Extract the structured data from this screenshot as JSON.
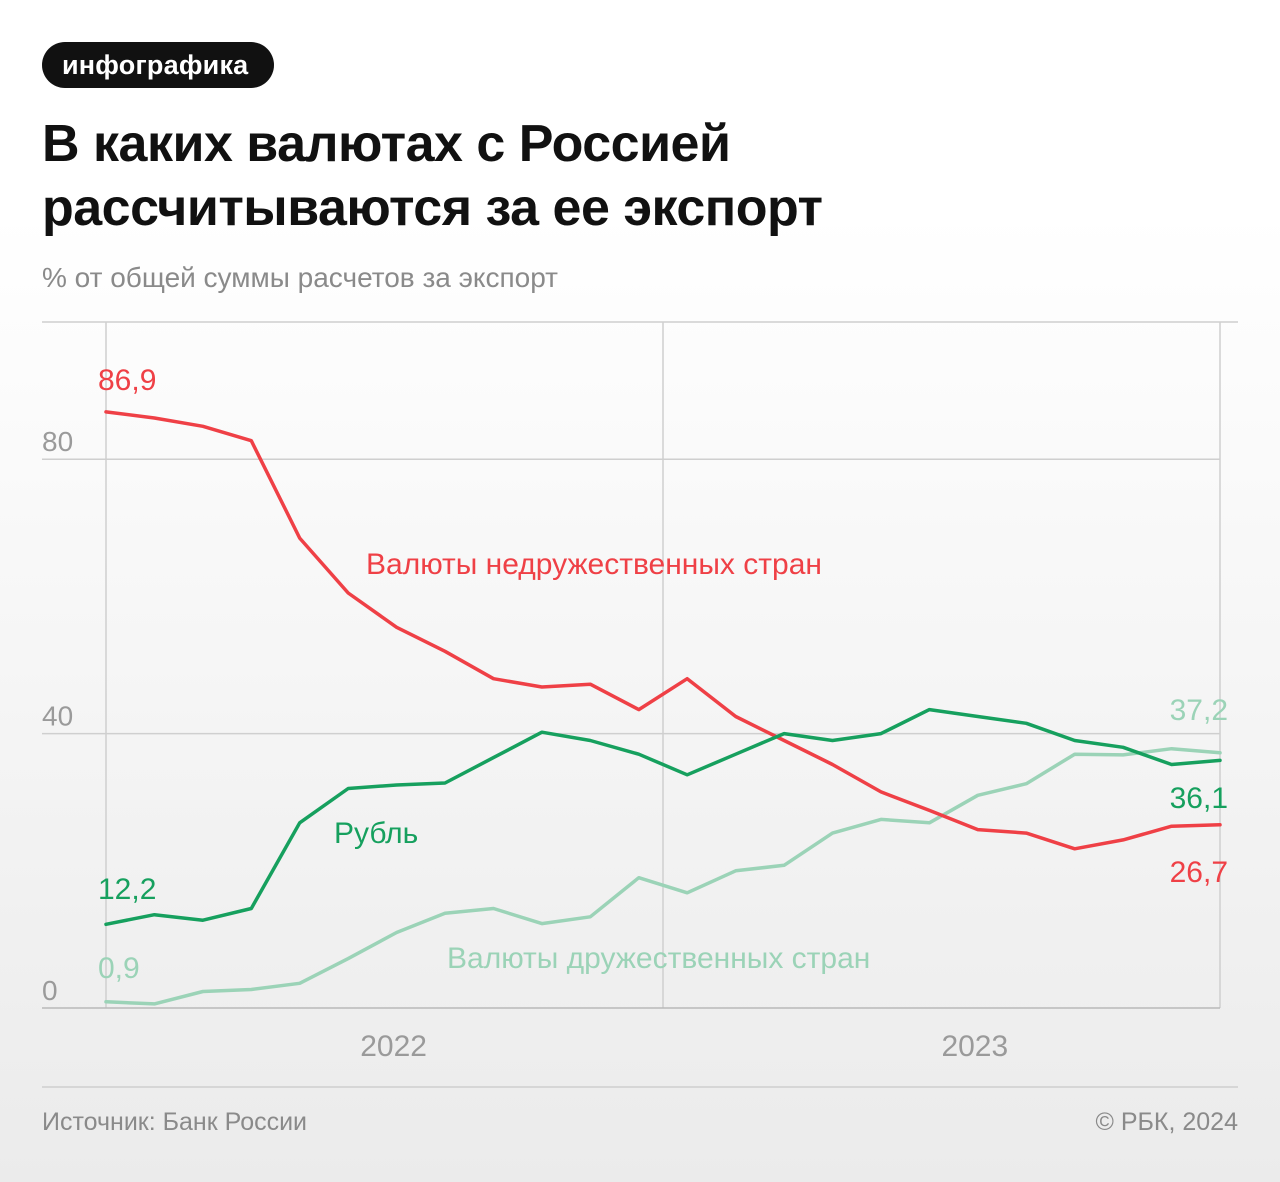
{
  "badge": "инфографика",
  "title_line1": "В каких валютах с Россией",
  "title_line2": "рассчитываются за ее экспорт",
  "subtitle": "% от общей суммы расчетов за экспорт",
  "footer": {
    "source": "Источник: Банк России",
    "copyright": "© РБК, 2024"
  },
  "colors": {
    "unfriendly": "#ef4046",
    "ruble": "#16a05e",
    "friendly": "#9bd3b7",
    "grid": "#cfcfcf",
    "tick": "#9a9a9a"
  },
  "chart_data": {
    "type": "line",
    "title": "В каких валютах с Россией рассчитываются за ее экспорт",
    "subtitle": "% от общей суммы расчетов за экспорт",
    "x": [
      "2022-01",
      "2022-02",
      "2022-03",
      "2022-04",
      "2022-05",
      "2022-06",
      "2022-07",
      "2022-08",
      "2022-09",
      "2022-10",
      "2022-11",
      "2022-12",
      "2023-01",
      "2023-02",
      "2023-03",
      "2023-04",
      "2023-05",
      "2023-06",
      "2023-07",
      "2023-08",
      "2023-09",
      "2023-10",
      "2023-11",
      "2023-12"
    ],
    "x_tick_labels": [
      {
        "at": "2022-07",
        "label": "2022"
      },
      {
        "at": "2023-07",
        "label": "2023"
      }
    ],
    "year_divider_after": "2022-12",
    "ylim": [
      0,
      100
    ],
    "yticks": [
      0,
      40,
      80
    ],
    "grid": true,
    "series": [
      {
        "name": "Валюты недружественных стран",
        "key": "unfriendly",
        "values": [
          86.9,
          86.0,
          84.8,
          82.7,
          68.5,
          60.5,
          55.5,
          52.0,
          48.0,
          46.8,
          47.2,
          43.5,
          48.0,
          42.5,
          39.0,
          35.5,
          31.5,
          28.8,
          26.0,
          25.5,
          23.2,
          24.5,
          26.5,
          26.7
        ],
        "start_label": "86,9",
        "end_label": "26,7"
      },
      {
        "name": "Рубль",
        "key": "ruble",
        "values": [
          12.2,
          13.6,
          12.8,
          14.5,
          27.0,
          32.0,
          32.5,
          32.8,
          36.5,
          40.2,
          39.0,
          37.0,
          34.0,
          37.0,
          40.0,
          39.0,
          40.0,
          43.5,
          42.5,
          41.5,
          39.0,
          38.0,
          35.5,
          36.1
        ],
        "start_label": "12,2",
        "end_label": "36,1"
      },
      {
        "name": "Валюты дружественных стран",
        "key": "friendly",
        "values": [
          0.9,
          0.6,
          2.4,
          2.7,
          3.6,
          7.2,
          11.0,
          13.8,
          14.5,
          12.3,
          13.3,
          19.0,
          16.8,
          20.0,
          20.8,
          25.5,
          27.5,
          27.0,
          31.0,
          32.7,
          37.0,
          36.9,
          37.8,
          37.2
        ],
        "start_label": "0,9",
        "end_label": "37,2"
      }
    ]
  }
}
